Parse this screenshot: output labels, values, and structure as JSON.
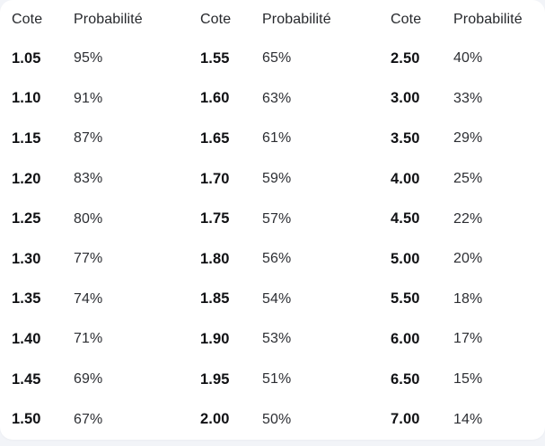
{
  "colors": {
    "page_background": "#f2f4f8",
    "card_background": "#ffffff",
    "header_text": "#26282c",
    "cote_text": "#101114",
    "probability_text": "#2c2e33"
  },
  "table": {
    "header": {
      "cote": "Cote",
      "probability": "Probabilité"
    },
    "groups": [
      {
        "rows": [
          {
            "cote": "1.05",
            "prob": "95%"
          },
          {
            "cote": "1.10",
            "prob": "91%"
          },
          {
            "cote": "1.15",
            "prob": "87%"
          },
          {
            "cote": "1.20",
            "prob": "83%"
          },
          {
            "cote": "1.25",
            "prob": "80%"
          },
          {
            "cote": "1.30",
            "prob": "77%"
          },
          {
            "cote": "1.35",
            "prob": "74%"
          },
          {
            "cote": "1.40",
            "prob": "71%"
          },
          {
            "cote": "1.45",
            "prob": "69%"
          },
          {
            "cote": "1.50",
            "prob": "67%"
          }
        ]
      },
      {
        "rows": [
          {
            "cote": "1.55",
            "prob": "65%"
          },
          {
            "cote": "1.60",
            "prob": "63%"
          },
          {
            "cote": "1.65",
            "prob": "61%"
          },
          {
            "cote": "1.70",
            "prob": "59%"
          },
          {
            "cote": "1.75",
            "prob": "57%"
          },
          {
            "cote": "1.80",
            "prob": "56%"
          },
          {
            "cote": "1.85",
            "prob": "54%"
          },
          {
            "cote": "1.90",
            "prob": "53%"
          },
          {
            "cote": "1.95",
            "prob": "51%"
          },
          {
            "cote": "2.00",
            "prob": "50%"
          }
        ]
      },
      {
        "rows": [
          {
            "cote": "2.50",
            "prob": "40%"
          },
          {
            "cote": "3.00",
            "prob": "33%"
          },
          {
            "cote": "3.50",
            "prob": "29%"
          },
          {
            "cote": "4.00",
            "prob": "25%"
          },
          {
            "cote": "4.50",
            "prob": "22%"
          },
          {
            "cote": "5.00",
            "prob": "20%"
          },
          {
            "cote": "5.50",
            "prob": "18%"
          },
          {
            "cote": "6.00",
            "prob": "17%"
          },
          {
            "cote": "6.50",
            "prob": "15%"
          },
          {
            "cote": "7.00",
            "prob": "14%"
          }
        ]
      }
    ]
  },
  "chart_data": {
    "type": "table",
    "title": "",
    "columns": [
      "Cote",
      "Probabilité",
      "Cote",
      "Probabilité",
      "Cote",
      "Probabilité"
    ],
    "groups": [
      {
        "cote": [
          1.05,
          1.1,
          1.15,
          1.2,
          1.25,
          1.3,
          1.35,
          1.4,
          1.45,
          1.5
        ],
        "probability_pct": [
          95,
          91,
          87,
          83,
          80,
          77,
          74,
          71,
          69,
          67
        ]
      },
      {
        "cote": [
          1.55,
          1.6,
          1.65,
          1.7,
          1.75,
          1.8,
          1.85,
          1.9,
          1.95,
          2.0
        ],
        "probability_pct": [
          65,
          63,
          61,
          59,
          57,
          56,
          54,
          53,
          51,
          50
        ]
      },
      {
        "cote": [
          2.5,
          3.0,
          3.5,
          4.0,
          4.5,
          5.0,
          5.5,
          6.0,
          6.5,
          7.0
        ],
        "probability_pct": [
          40,
          33,
          29,
          25,
          22,
          20,
          18,
          17,
          15,
          14
        ]
      }
    ]
  }
}
